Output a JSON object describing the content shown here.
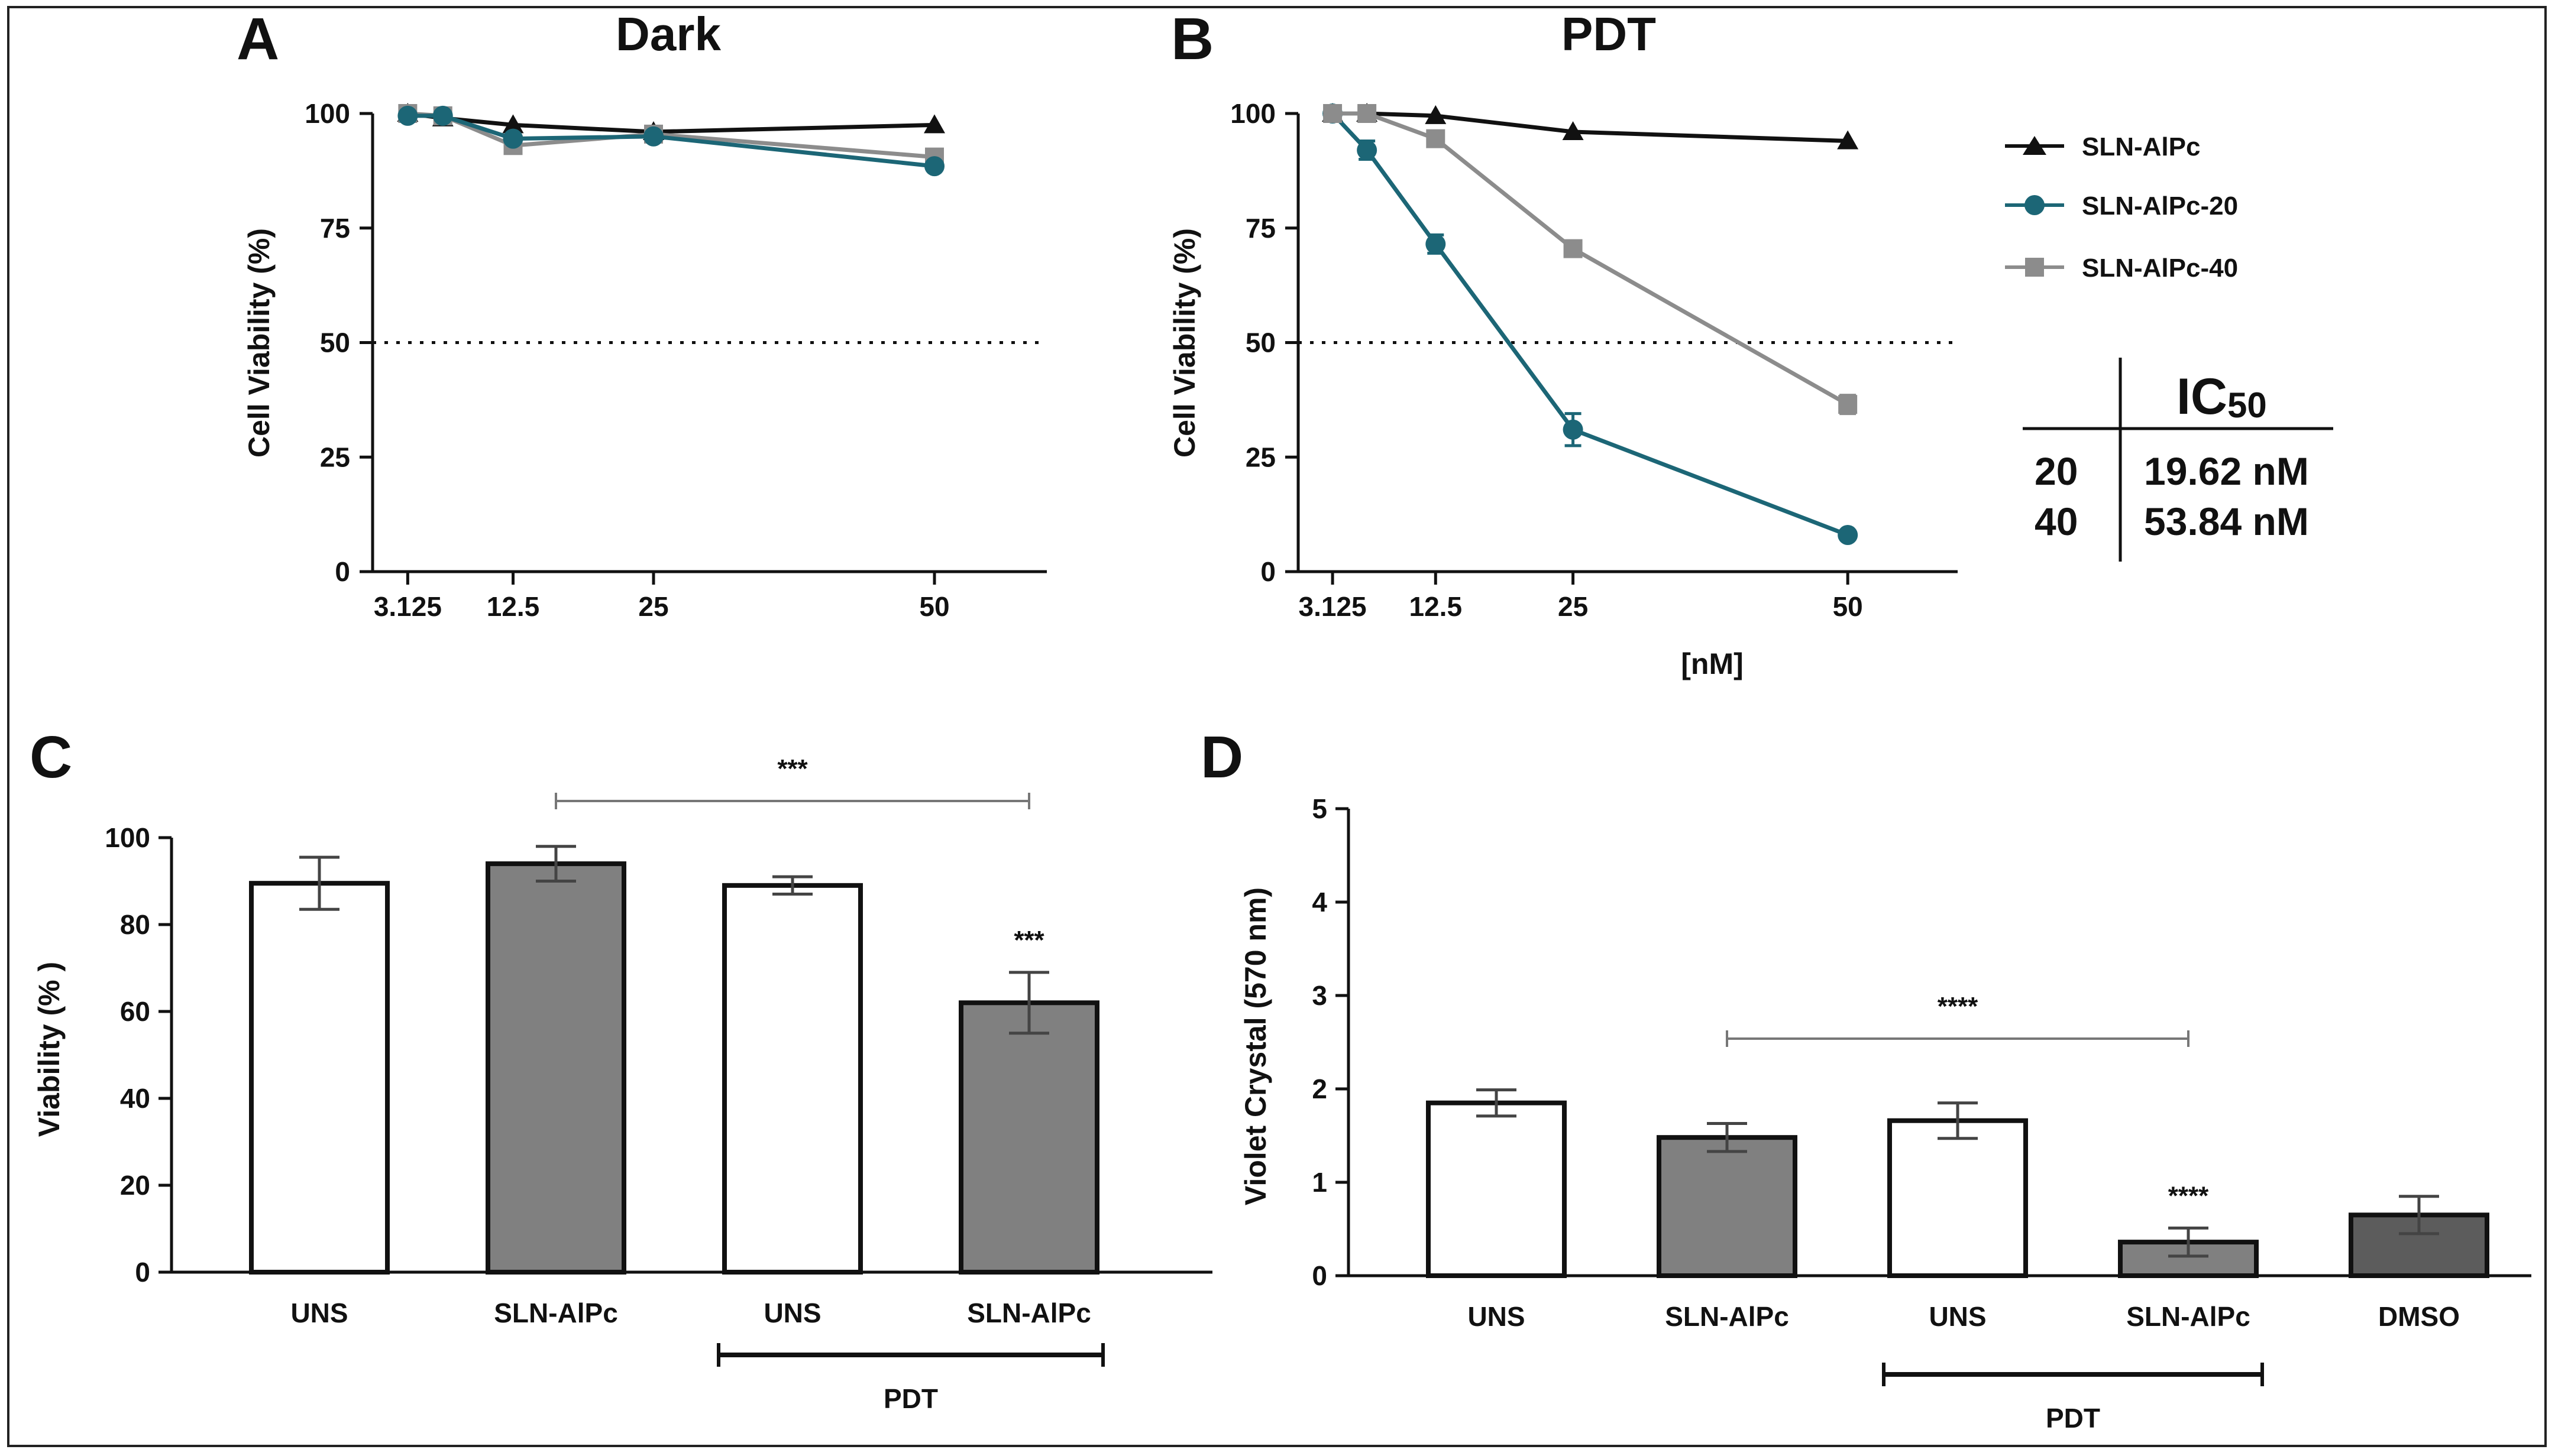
{
  "chart_data": [
    {
      "panel": "A",
      "type": "line",
      "title": "Dark",
      "xlabel": "",
      "ylabel": "Cell Viability (%)",
      "ylim": [
        0,
        100
      ],
      "yticks": [
        0,
        25,
        50,
        75,
        100
      ],
      "xticks": [
        3.125,
        12.5,
        25,
        50
      ],
      "xtick_labels": [
        "3.125",
        "12.5",
        "25",
        "50"
      ],
      "reference_line": 50,
      "series": [
        {
          "name": "SLN-AlPc",
          "marker": "triangle",
          "color": "#111111",
          "x": [
            3.125,
            6.25,
            12.5,
            25,
            50
          ],
          "y": [
            100,
            99,
            97.5,
            96,
            97.5
          ],
          "err": [
            0,
            0,
            0,
            0,
            0
          ]
        },
        {
          "name": "SLN-AlPc-40",
          "marker": "square",
          "color": "#8c8c8c",
          "x": [
            3.125,
            6.25,
            12.5,
            25,
            50
          ],
          "y": [
            100,
            99.5,
            93,
            95.5,
            90.5
          ],
          "err": [
            1,
            0.5,
            1.5,
            0.5,
            0.5
          ]
        },
        {
          "name": "SLN-AlPc-20",
          "marker": "circle",
          "color": "#1c6676",
          "x": [
            3.125,
            6.25,
            12.5,
            25,
            50
          ],
          "y": [
            99.5,
            99.5,
            94.5,
            95,
            88.5
          ],
          "err": [
            0.5,
            0.5,
            0.5,
            0.5,
            0.5
          ]
        }
      ]
    },
    {
      "panel": "B",
      "type": "line",
      "title": "PDT",
      "xlabel": "[nM]",
      "ylabel": "Cell Viability (%)",
      "ylim": [
        0,
        100
      ],
      "yticks": [
        0,
        25,
        50,
        75,
        100
      ],
      "xticks": [
        3.125,
        12.5,
        25,
        50
      ],
      "xtick_labels": [
        "3.125",
        "12.5",
        "25",
        "50"
      ],
      "reference_line": 50,
      "series": [
        {
          "name": "SLN-AlPc",
          "marker": "triangle",
          "color": "#111111",
          "x": [
            3.125,
            6.25,
            12.5,
            25,
            50
          ],
          "y": [
            100,
            100,
            99.5,
            96,
            94
          ],
          "err": [
            0,
            0,
            0,
            0,
            0
          ]
        },
        {
          "name": "SLN-AlPc-20",
          "marker": "circle",
          "color": "#1c6676",
          "x": [
            3.125,
            6.25,
            12.5,
            25,
            50
          ],
          "y": [
            100,
            92,
            71.5,
            31,
            8
          ],
          "err": [
            0.5,
            2,
            2,
            3.5,
            0.5
          ]
        },
        {
          "name": "SLN-AlPc-40",
          "marker": "square",
          "color": "#8c8c8c",
          "x": [
            3.125,
            6.25,
            12.5,
            25,
            50
          ],
          "y": [
            100,
            100,
            94.5,
            70.5,
            36.5
          ],
          "err": [
            0.5,
            0.5,
            1.5,
            1,
            2
          ]
        }
      ]
    },
    {
      "panel": "C",
      "type": "bar",
      "title": "",
      "xlabel": "",
      "ylabel": "Viability (% )",
      "ylim": [
        0,
        100
      ],
      "yticks": [
        0,
        20,
        40,
        60,
        80,
        100
      ],
      "categories": [
        "UNS",
        "SLN-AlPc",
        "UNS",
        "SLN-AlPc"
      ],
      "values": [
        89.5,
        94,
        89,
        62
      ],
      "errors": [
        6,
        4,
        2,
        7
      ],
      "bar_colors": [
        "#ffffff",
        "#808080",
        "#ffffff",
        "#808080"
      ],
      "group_label": "PDT",
      "group_span": [
        2,
        3
      ],
      "bar_annotations": [
        "",
        "",
        "",
        "***"
      ],
      "bracket": {
        "from": 1,
        "to": 3,
        "label": "***"
      }
    },
    {
      "panel": "D",
      "type": "bar",
      "title": "",
      "xlabel": "",
      "ylabel": "Violet Crystal (570 nm)",
      "ylim": [
        0,
        5
      ],
      "yticks": [
        0,
        1,
        2,
        3,
        4,
        5
      ],
      "categories": [
        "UNS",
        "SLN-AlPc",
        "UNS",
        "SLN-AlPc",
        "DMSO"
      ],
      "values": [
        1.85,
        1.48,
        1.66,
        0.36,
        0.65
      ],
      "errors": [
        0.14,
        0.15,
        0.19,
        0.15,
        0.2
      ],
      "bar_colors": [
        "#ffffff",
        "#808080",
        "#ffffff",
        "#808080",
        "#5c5c5c"
      ],
      "group_label": "PDT",
      "group_span": [
        2,
        3
      ],
      "bar_annotations": [
        "",
        "",
        "",
        "****",
        ""
      ],
      "bracket": {
        "from": 1,
        "to": 3,
        "label": "****"
      }
    }
  ],
  "legend": {
    "entries": [
      {
        "name": "SLN-AlPc",
        "marker": "triangle",
        "color": "#111111"
      },
      {
        "name": "SLN-AlPc-20",
        "marker": "circle",
        "color": "#1c6676"
      },
      {
        "name": "SLN-AlPc-40",
        "marker": "square",
        "color": "#8c8c8c"
      }
    ]
  },
  "ic50_table": {
    "header_main": "IC",
    "header_sub": "50",
    "rows": [
      {
        "label": "20",
        "value": "19.62 nM"
      },
      {
        "label": "40",
        "value": "53.84 nM"
      }
    ]
  }
}
